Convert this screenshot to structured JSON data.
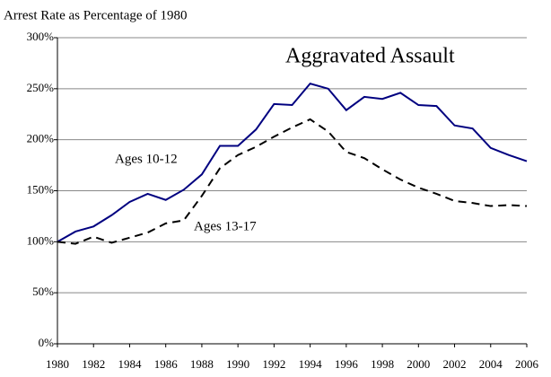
{
  "chart_data": {
    "type": "line",
    "title": "Aggravated Assault",
    "y_label": "Arrest Rate as Percentage of 1980",
    "x": [
      1980,
      1981,
      1982,
      1983,
      1984,
      1985,
      1986,
      1987,
      1988,
      1989,
      1990,
      1991,
      1992,
      1993,
      1994,
      1995,
      1996,
      1997,
      1998,
      1999,
      2000,
      2001,
      2002,
      2003,
      2004,
      2005,
      2006
    ],
    "series": [
      {
        "name": "Ages 10-12",
        "color": "#000080",
        "dash": false,
        "values": [
          100,
          110,
          115,
          126,
          139,
          147,
          141,
          151,
          166,
          194,
          194,
          210,
          235,
          234,
          255,
          250,
          229,
          242,
          240,
          246,
          234,
          233,
          214,
          211,
          192,
          185,
          179
        ]
      },
      {
        "name": "Ages 13-17",
        "color": "#000000",
        "dash": true,
        "values": [
          100,
          98,
          105,
          99,
          104,
          109,
          118,
          121,
          145,
          172,
          185,
          193,
          203,
          212,
          220,
          208,
          188,
          182,
          171,
          161,
          153,
          147,
          140,
          138,
          135,
          136,
          135
        ]
      }
    ],
    "xlim": [
      1980,
      2006
    ],
    "xticks": [
      1980,
      1982,
      1984,
      1986,
      1988,
      1990,
      1992,
      1994,
      1996,
      1998,
      2000,
      2002,
      2004,
      2006
    ],
    "ylim": [
      0,
      300
    ],
    "yticks": [
      {
        "value": 0,
        "label": "0%"
      },
      {
        "value": 50,
        "label": "50%"
      },
      {
        "value": 100,
        "label": "100%"
      },
      {
        "value": 150,
        "label": "150%"
      },
      {
        "value": 200,
        "label": "200%"
      },
      {
        "value": 250,
        "label": "250%"
      },
      {
        "value": 300,
        "label": "300%"
      }
    ],
    "grid": true
  }
}
